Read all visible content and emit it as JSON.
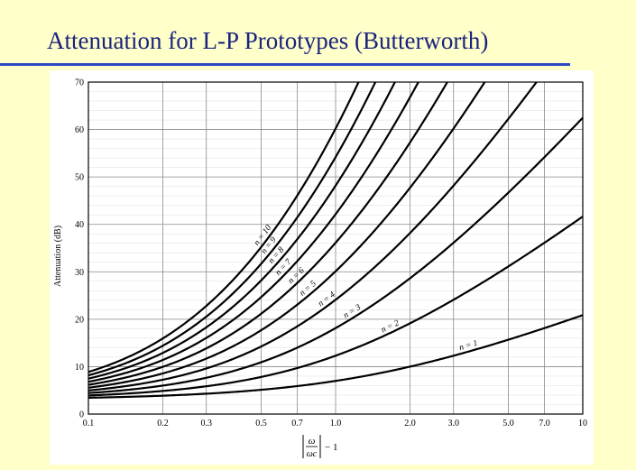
{
  "slide": {
    "title": "Attenuation for L-P Prototypes (Butterworth)"
  },
  "chart_data": {
    "type": "line",
    "title": "",
    "ylabel": "Attenuation (dB)",
    "xlabel_parts": {
      "numerator": "ω",
      "denominator": "ωc",
      "suffix": "− 1"
    },
    "x_scale": "log",
    "xlim": [
      0.1,
      10
    ],
    "ylim": [
      0,
      70
    ],
    "x_ticks": [
      0.1,
      0.2,
      0.3,
      0.5,
      0.7,
      1.0,
      2.0,
      3.0,
      5.0,
      7.0,
      10
    ],
    "x_tick_labels": [
      "0.1",
      "0.2",
      "0.3",
      "0.5",
      "0.7",
      "1.0",
      "2.0",
      "3.0",
      "5.0",
      "7.0",
      "10"
    ],
    "y_ticks": [
      0,
      10,
      20,
      30,
      40,
      50,
      60,
      70
    ],
    "y_tick_labels": [
      "0",
      "10",
      "20",
      "30",
      "40",
      "50",
      "60",
      "70"
    ],
    "grid": true,
    "series": [
      {
        "name": "n = 1",
        "n": 1,
        "label_at": 3.5
      },
      {
        "name": "n = 2",
        "n": 2,
        "label_at": 1.7
      },
      {
        "name": "n = 3",
        "n": 3,
        "label_at": 1.2
      },
      {
        "name": "n = 4",
        "n": 4,
        "label_at": 0.95
      },
      {
        "name": "n = 5",
        "n": 5,
        "label_at": 0.8
      },
      {
        "name": "n = 6",
        "n": 6,
        "label_at": 0.72
      },
      {
        "name": "n = 7",
        "n": 7,
        "label_at": 0.64
      },
      {
        "name": "n = 8",
        "n": 8,
        "label_at": 0.6
      },
      {
        "name": "n = 9",
        "n": 9,
        "label_at": 0.56
      },
      {
        "name": "n = 10",
        "n": 10,
        "label_at": 0.53
      }
    ]
  }
}
